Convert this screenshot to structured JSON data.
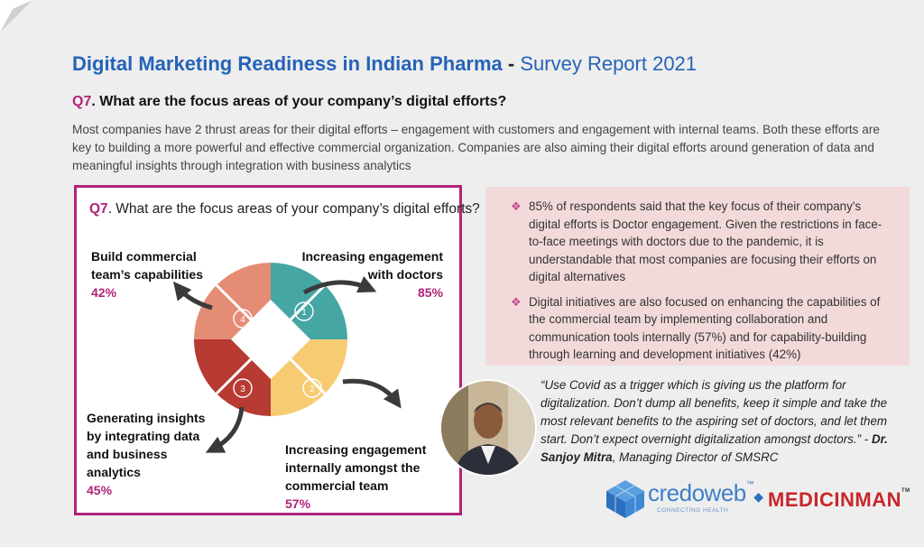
{
  "header": {
    "title_main": "Digital Marketing Readiness in Indian Pharma",
    "title_dash": "-",
    "title_sub": "Survey Report 2021"
  },
  "question": {
    "number": "Q7",
    "text": ". What are the focus areas of your company’s digital efforts?"
  },
  "intro": "Most companies have 2 thrust areas for their digital efforts – engagement with customers and engagement with internal teams. Both these efforts are key to building a more powerful and effective commercial organization. Companies are also aiming their digital efforts around generation of data and meaningful insights through integration with business analytics",
  "panel": {
    "question_number": "Q7",
    "question_text": ". What are the focus areas of your company’s digital efforts?",
    "segments": [
      {
        "number": "1",
        "label_line1": "Increasing engagement",
        "label_line2": "with doctors",
        "label_line3": "",
        "label_line4": "",
        "percent": "85%",
        "color": "#46a6a4"
      },
      {
        "number": "2",
        "label_line1": "Increasing engagement",
        "label_line2": "internally amongst the",
        "label_line3": "commercial team",
        "label_line4": "",
        "percent": "57%",
        "color": "#f6cb72"
      },
      {
        "number": "3",
        "label_line1": "Generating insights",
        "label_line2": "by integrating data",
        "label_line3": "and business",
        "label_line4": "analytics",
        "percent": "45%",
        "color": "#b73a33"
      },
      {
        "number": "4",
        "label_line1": "Build commercial",
        "label_line2": "team’s capabilities",
        "label_line3": "",
        "label_line4": "",
        "percent": "42%",
        "color": "#e58c75"
      }
    ]
  },
  "info": {
    "bullets": [
      "85% of respondents said that the key focus of their company’s digital efforts is Doctor engagement. Given the restrictions in face-to-face meetings with doctors due to the pandemic, it is understandable that most companies are focusing their efforts on digital alternatives",
      "Digital initiatives are also focused on enhancing the capabilities of the commercial team by implementing collaboration and communication tools internally (57%) and for capability-building through learning and development initiatives (42%)"
    ],
    "bullet_icon": "diamond-bullet-icon"
  },
  "quote": {
    "text": "“Use Covid as a trigger which is giving us the platform for digitalization. Don’t dump all benefits, keep it simple and take the most relevant benefits to the aspiring set of doctors, and let them start. Don’t expect overnight digitalization amongst doctors.”",
    "separator": "-",
    "author": "Dr. Sanjoy Mitra",
    "role": ", Managing Director of SMSRC"
  },
  "logos": {
    "credoweb_name": "credoweb",
    "credoweb_tm": "™",
    "credoweb_tagline": "CONNECTING HEALTH",
    "medicinman_name": "MEDICINMAN",
    "medicinman_tm": "TM"
  },
  "colors": {
    "title_blue": "#2563b8",
    "accent_magenta": "#b0237a",
    "info_bg": "#f3dada"
  }
}
